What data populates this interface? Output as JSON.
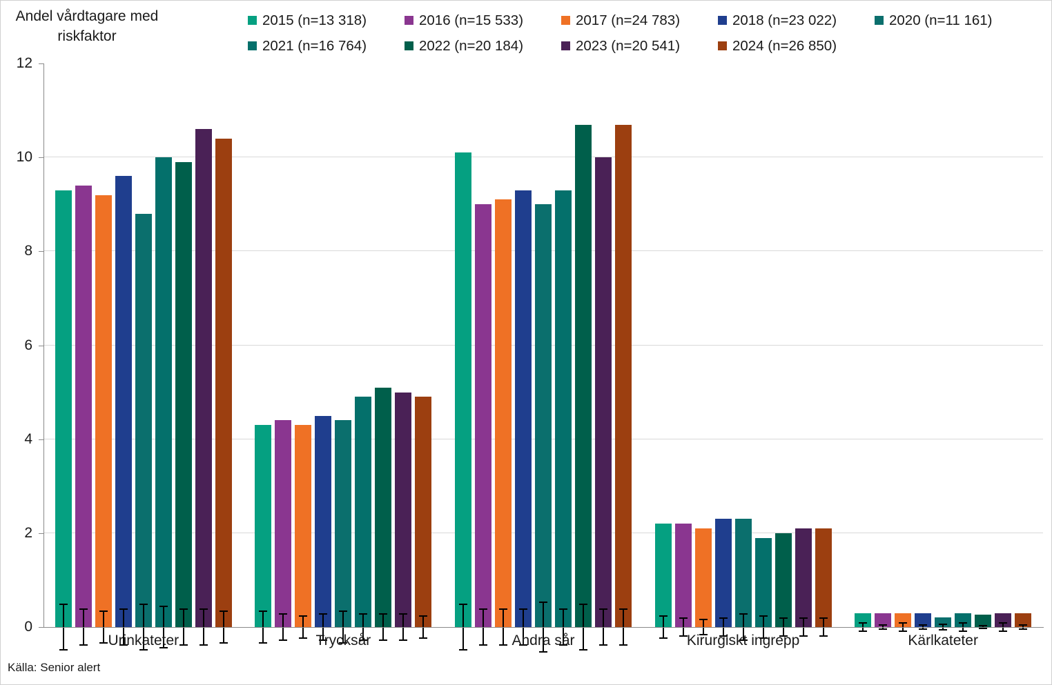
{
  "yaxis_title_line1": "Andel vårdtagare med",
  "yaxis_title_line2": "riskfaktor",
  "source": "Källa: Senior alert",
  "chart_data": {
    "type": "bar",
    "title": "",
    "ylabel": "Andel vårdtagare med riskfaktor",
    "xlabel": "",
    "ylim": [
      0,
      12
    ],
    "yticks": [
      0,
      2,
      4,
      6,
      8,
      10,
      12
    ],
    "gridline_values": [
      2,
      4,
      6,
      8,
      10
    ],
    "grid": "horizontal",
    "legend_position": "top",
    "legend_rows": [
      5,
      4
    ],
    "error_bars": true,
    "categories": [
      "Urinkateter",
      "Trycksår",
      "Andra sår",
      "Kirurgiskt ingrepp",
      "Kärlkateter"
    ],
    "series": [
      {
        "name": "2015 (n=13 318)",
        "color": "#05A081",
        "values": [
          9.3,
          4.3,
          10.1,
          2.2,
          0.3
        ],
        "errors": [
          0.5,
          0.35,
          0.5,
          0.25,
          0.1
        ]
      },
      {
        "name": "2016 (n=15 533)",
        "color": "#8A3690",
        "values": [
          9.4,
          4.4,
          9.0,
          2.2,
          0.3
        ],
        "errors": [
          0.4,
          0.3,
          0.4,
          0.2,
          0.06
        ]
      },
      {
        "name": "2017 (n=24 783)",
        "color": "#EF7125",
        "values": [
          9.2,
          4.3,
          9.1,
          2.1,
          0.3
        ],
        "errors": [
          0.35,
          0.25,
          0.4,
          0.17,
          0.1
        ]
      },
      {
        "name": "2018 (n=23 022)",
        "color": "#1F3E8E",
        "values": [
          9.6,
          4.5,
          9.3,
          2.3,
          0.3
        ],
        "errors": [
          0.4,
          0.3,
          0.4,
          0.2,
          0.06
        ]
      },
      {
        "name": "2020 (n=11 161)",
        "color": "#0B6F6D",
        "values": [
          8.8,
          4.4,
          9.0,
          2.3,
          0.2
        ],
        "errors": [
          0.5,
          0.35,
          0.55,
          0.3,
          0.08
        ]
      },
      {
        "name": "2021 (n=16 764)",
        "color": "#04706B",
        "values": [
          10.0,
          4.9,
          9.3,
          1.9,
          0.3
        ],
        "errors": [
          0.45,
          0.3,
          0.4,
          0.25,
          0.1
        ]
      },
      {
        "name": "2022 (n=20 184)",
        "color": "#005F4B",
        "values": [
          9.9,
          5.1,
          10.7,
          2.0,
          0.27
        ],
        "errors": [
          0.4,
          0.3,
          0.5,
          0.2,
          0.05
        ]
      },
      {
        "name": "2023 (n=20 541)",
        "color": "#4A2156",
        "values": [
          10.6,
          5.0,
          10.0,
          2.1,
          0.3
        ],
        "errors": [
          0.4,
          0.3,
          0.4,
          0.2,
          0.1
        ]
      },
      {
        "name": "2024 (n=26 850)",
        "color": "#9C3F10",
        "values": [
          10.4,
          4.9,
          10.7,
          2.1,
          0.3
        ],
        "errors": [
          0.35,
          0.25,
          0.4,
          0.2,
          0.06
        ]
      }
    ]
  }
}
